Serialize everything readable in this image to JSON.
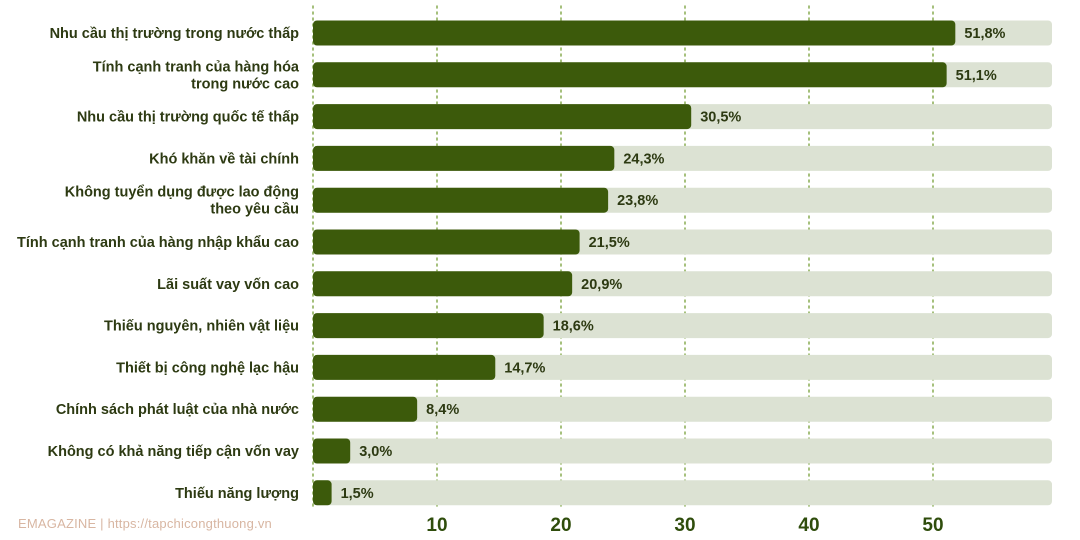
{
  "footer": "EMAGAZINE  |  https://tapchicongthuong.vn",
  "colors": {
    "bar": "#3c5a0b",
    "track": "#dce2d3",
    "grid": "#8fb15c",
    "text": "#2d3a12",
    "tick": "#2f4d0c"
  },
  "chart_data": {
    "type": "bar",
    "orientation": "horizontal",
    "categories": [
      [
        "Nhu cầu thị trường trong nước thấp"
      ],
      [
        "Tính cạnh tranh của hàng hóa",
        "trong nước cao"
      ],
      [
        "Nhu cầu thị trường quốc tế thấp"
      ],
      [
        "Khó khăn về tài chính"
      ],
      [
        "Không tuyển dụng được lao động",
        "theo yêu cầu"
      ],
      [
        "Tính cạnh tranh của hàng nhập khẩu cao"
      ],
      [
        "Lãi suất vay vốn cao"
      ],
      [
        "Thiếu nguyên, nhiên vật liệu"
      ],
      [
        "Thiết bị công nghệ lạc hậu"
      ],
      [
        "Chính sách phát luật của nhà nước"
      ],
      [
        "Không có khả năng tiếp cận vốn vay"
      ],
      [
        "Thiếu năng lượng"
      ]
    ],
    "values": [
      51.8,
      51.1,
      30.5,
      24.3,
      23.8,
      21.5,
      20.9,
      18.6,
      14.7,
      8.4,
      3.0,
      1.5
    ],
    "value_labels": [
      "51,8%",
      "51,1%",
      "30,5%",
      "24,3%",
      "23,8%",
      "21,5%",
      "20,9%",
      "18,6%",
      "14,7%",
      "8,4%",
      "3,0%",
      "1,5%"
    ],
    "xticks": [
      10,
      20,
      30,
      40,
      50
    ],
    "xlim": [
      0,
      60
    ],
    "grid": "vertical dotted",
    "background_track": true
  }
}
